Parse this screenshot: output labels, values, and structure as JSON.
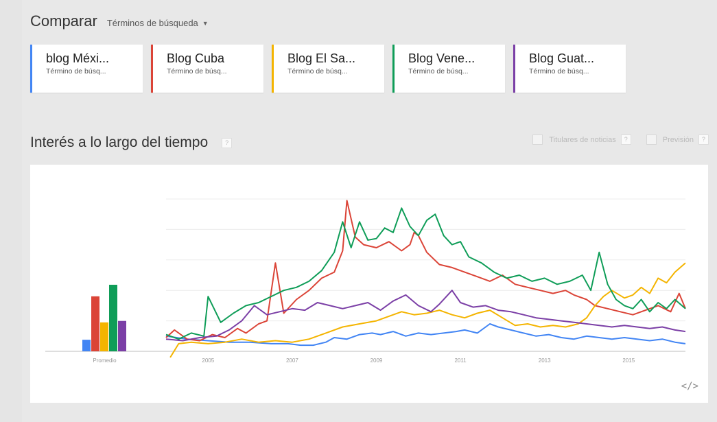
{
  "header": {
    "title": "Comparar",
    "mode_label": "Términos de búsqueda",
    "caret": "▼"
  },
  "terms": [
    {
      "label": "blog Méxi...",
      "sub": "Término de búsq...",
      "color": "#4285f4"
    },
    {
      "label": "Blog Cuba",
      "sub": "Término de búsq...",
      "color": "#db4437"
    },
    {
      "label": "Blog El Sa...",
      "sub": "Término de búsq...",
      "color": "#f4b400"
    },
    {
      "label": "Blog Vene...",
      "sub": "Término de búsq...",
      "color": "#0f9d58"
    },
    {
      "label": "Blog Guat...",
      "sub": "Término de búsq...",
      "color": "#7b3fa6"
    }
  ],
  "section": {
    "title": "Interés a lo largo del tiempo",
    "help": "?"
  },
  "options": {
    "news_label": "Titulares de noticias",
    "forecast_label": "Previsión",
    "help": "?"
  },
  "embed_label": "</>",
  "chart_data": [
    {
      "type": "bar",
      "categories": [
        "blog Méxi...",
        "Blog Cuba",
        "Blog El Sa...",
        "Blog Vene...",
        "Blog Guat..."
      ],
      "values": [
        8,
        38,
        20,
        46,
        21
      ],
      "colors": [
        "#4285f4",
        "#db4437",
        "#f4b400",
        "#0f9d58",
        "#7b3fa6"
      ],
      "xlabel": "Promedio",
      "ylim": [
        0,
        100
      ]
    },
    {
      "type": "line",
      "xlim": [
        2004.0,
        2016.35
      ],
      "ylim": [
        0,
        100
      ],
      "x_ticks": [
        2005,
        2007,
        2009,
        2011,
        2013,
        2015
      ],
      "grid": true,
      "series": [
        {
          "color": "#4285f4",
          "points": [
            [
              2004.0,
              10
            ],
            [
              2004.5,
              8
            ],
            [
              2005.0,
              7
            ],
            [
              2005.5,
              6
            ],
            [
              2006.0,
              6
            ],
            [
              2006.5,
              5
            ],
            [
              2006.9,
              5
            ],
            [
              2007.2,
              4
            ],
            [
              2007.5,
              4
            ],
            [
              2007.8,
              6
            ],
            [
              2008.0,
              9
            ],
            [
              2008.3,
              8
            ],
            [
              2008.6,
              11
            ],
            [
              2008.9,
              12
            ],
            [
              2009.1,
              11
            ],
            [
              2009.4,
              13
            ],
            [
              2009.7,
              10
            ],
            [
              2010.0,
              12
            ],
            [
              2010.3,
              11
            ],
            [
              2010.6,
              12
            ],
            [
              2010.9,
              13
            ],
            [
              2011.1,
              14
            ],
            [
              2011.4,
              12
            ],
            [
              2011.7,
              18
            ],
            [
              2011.9,
              16
            ],
            [
              2012.2,
              14
            ],
            [
              2012.5,
              12
            ],
            [
              2012.8,
              10
            ],
            [
              2013.1,
              11
            ],
            [
              2013.4,
              9
            ],
            [
              2013.7,
              8
            ],
            [
              2014.0,
              10
            ],
            [
              2014.3,
              9
            ],
            [
              2014.6,
              8
            ],
            [
              2014.9,
              9
            ],
            [
              2015.2,
              8
            ],
            [
              2015.5,
              7
            ],
            [
              2015.8,
              8
            ],
            [
              2016.1,
              6
            ],
            [
              2016.35,
              5
            ]
          ]
        },
        {
          "color": "#db4437",
          "points": [
            [
              2004.0,
              9
            ],
            [
              2004.2,
              14
            ],
            [
              2004.5,
              8
            ],
            [
              2004.8,
              7
            ],
            [
              2005.1,
              11
            ],
            [
              2005.4,
              9
            ],
            [
              2005.7,
              15
            ],
            [
              2005.9,
              12
            ],
            [
              2006.2,
              18
            ],
            [
              2006.4,
              20
            ],
            [
              2006.6,
              58
            ],
            [
              2006.8,
              25
            ],
            [
              2007.1,
              34
            ],
            [
              2007.4,
              40
            ],
            [
              2007.7,
              48
            ],
            [
              2008.0,
              52
            ],
            [
              2008.2,
              66
            ],
            [
              2008.3,
              99
            ],
            [
              2008.5,
              75
            ],
            [
              2008.7,
              70
            ],
            [
              2009.0,
              68
            ],
            [
              2009.3,
              72
            ],
            [
              2009.6,
              66
            ],
            [
              2009.8,
              70
            ],
            [
              2009.9,
              78
            ],
            [
              2010.0,
              76
            ],
            [
              2010.2,
              65
            ],
            [
              2010.5,
              57
            ],
            [
              2010.8,
              55
            ],
            [
              2011.1,
              52
            ],
            [
              2011.4,
              49
            ],
            [
              2011.7,
              46
            ],
            [
              2012.0,
              50
            ],
            [
              2012.3,
              44
            ],
            [
              2012.6,
              42
            ],
            [
              2012.9,
              40
            ],
            [
              2013.2,
              38
            ],
            [
              2013.5,
              40
            ],
            [
              2013.7,
              37
            ],
            [
              2014.0,
              34
            ],
            [
              2014.2,
              30
            ],
            [
              2014.5,
              28
            ],
            [
              2014.8,
              26
            ],
            [
              2015.1,
              24
            ],
            [
              2015.4,
              27
            ],
            [
              2015.7,
              30
            ],
            [
              2016.0,
              26
            ],
            [
              2016.2,
              38
            ],
            [
              2016.35,
              28
            ]
          ]
        },
        {
          "color": "#f4b400",
          "points": [
            [
              2004.1,
              -4
            ],
            [
              2004.3,
              5
            ],
            [
              2004.6,
              6
            ],
            [
              2005.0,
              5
            ],
            [
              2005.4,
              6
            ],
            [
              2005.8,
              8
            ],
            [
              2006.2,
              6
            ],
            [
              2006.6,
              7
            ],
            [
              2007.0,
              6
            ],
            [
              2007.4,
              8
            ],
            [
              2007.8,
              12
            ],
            [
              2008.2,
              16
            ],
            [
              2008.6,
              18
            ],
            [
              2009.0,
              20
            ],
            [
              2009.3,
              23
            ],
            [
              2009.6,
              26
            ],
            [
              2009.9,
              24
            ],
            [
              2010.2,
              25
            ],
            [
              2010.5,
              27
            ],
            [
              2010.8,
              24
            ],
            [
              2011.1,
              22
            ],
            [
              2011.4,
              25
            ],
            [
              2011.7,
              27
            ],
            [
              2012.0,
              22
            ],
            [
              2012.3,
              17
            ],
            [
              2012.6,
              18
            ],
            [
              2012.9,
              16
            ],
            [
              2013.2,
              17
            ],
            [
              2013.5,
              16
            ],
            [
              2013.8,
              18
            ],
            [
              2014.0,
              22
            ],
            [
              2014.2,
              30
            ],
            [
              2014.4,
              36
            ],
            [
              2014.6,
              40
            ],
            [
              2014.9,
              35
            ],
            [
              2015.1,
              37
            ],
            [
              2015.3,
              42
            ],
            [
              2015.5,
              38
            ],
            [
              2015.7,
              48
            ],
            [
              2015.9,
              45
            ],
            [
              2016.1,
              52
            ],
            [
              2016.35,
              58
            ]
          ]
        },
        {
          "color": "#0f9d58",
          "points": [
            [
              2004.0,
              11
            ],
            [
              2004.3,
              8
            ],
            [
              2004.6,
              12
            ],
            [
              2004.9,
              10
            ],
            [
              2005.0,
              36
            ],
            [
              2005.3,
              19
            ],
            [
              2005.6,
              25
            ],
            [
              2005.9,
              30
            ],
            [
              2006.2,
              32
            ],
            [
              2006.5,
              36
            ],
            [
              2006.8,
              40
            ],
            [
              2007.1,
              42
            ],
            [
              2007.4,
              46
            ],
            [
              2007.7,
              53
            ],
            [
              2008.0,
              65
            ],
            [
              2008.2,
              85
            ],
            [
              2008.4,
              68
            ],
            [
              2008.6,
              85
            ],
            [
              2008.8,
              73
            ],
            [
              2009.0,
              74
            ],
            [
              2009.2,
              81
            ],
            [
              2009.4,
              78
            ],
            [
              2009.6,
              94
            ],
            [
              2009.8,
              82
            ],
            [
              2010.0,
              76
            ],
            [
              2010.2,
              86
            ],
            [
              2010.4,
              90
            ],
            [
              2010.6,
              76
            ],
            [
              2010.8,
              70
            ],
            [
              2011.0,
              72
            ],
            [
              2011.2,
              62
            ],
            [
              2011.5,
              58
            ],
            [
              2011.8,
              52
            ],
            [
              2012.1,
              48
            ],
            [
              2012.4,
              50
            ],
            [
              2012.7,
              46
            ],
            [
              2013.0,
              48
            ],
            [
              2013.3,
              44
            ],
            [
              2013.6,
              46
            ],
            [
              2013.9,
              50
            ],
            [
              2014.1,
              40
            ],
            [
              2014.3,
              65
            ],
            [
              2014.5,
              44
            ],
            [
              2014.7,
              34
            ],
            [
              2014.9,
              30
            ],
            [
              2015.1,
              28
            ],
            [
              2015.3,
              34
            ],
            [
              2015.5,
              26
            ],
            [
              2015.7,
              32
            ],
            [
              2015.9,
              28
            ],
            [
              2016.1,
              34
            ],
            [
              2016.35,
              28
            ]
          ]
        },
        {
          "color": "#7b3fa6",
          "points": [
            [
              2004.0,
              8
            ],
            [
              2004.4,
              7
            ],
            [
              2004.8,
              9
            ],
            [
              2005.2,
              10
            ],
            [
              2005.5,
              14
            ],
            [
              2005.8,
              20
            ],
            [
              2006.1,
              30
            ],
            [
              2006.4,
              24
            ],
            [
              2006.7,
              26
            ],
            [
              2007.0,
              28
            ],
            [
              2007.3,
              27
            ],
            [
              2007.6,
              32
            ],
            [
              2007.9,
              30
            ],
            [
              2008.2,
              28
            ],
            [
              2008.5,
              30
            ],
            [
              2008.8,
              32
            ],
            [
              2009.1,
              27
            ],
            [
              2009.4,
              33
            ],
            [
              2009.7,
              37
            ],
            [
              2010.0,
              30
            ],
            [
              2010.3,
              26
            ],
            [
              2010.5,
              31
            ],
            [
              2010.8,
              40
            ],
            [
              2011.0,
              32
            ],
            [
              2011.3,
              29
            ],
            [
              2011.6,
              30
            ],
            [
              2011.9,
              27
            ],
            [
              2012.2,
              26
            ],
            [
              2012.5,
              24
            ],
            [
              2012.8,
              22
            ],
            [
              2013.1,
              21
            ],
            [
              2013.4,
              20
            ],
            [
              2013.7,
              19
            ],
            [
              2014.0,
              18
            ],
            [
              2014.3,
              17
            ],
            [
              2014.6,
              16
            ],
            [
              2014.9,
              17
            ],
            [
              2015.2,
              16
            ],
            [
              2015.5,
              15
            ],
            [
              2015.8,
              16
            ],
            [
              2016.1,
              14
            ],
            [
              2016.35,
              13
            ]
          ]
        }
      ]
    }
  ]
}
